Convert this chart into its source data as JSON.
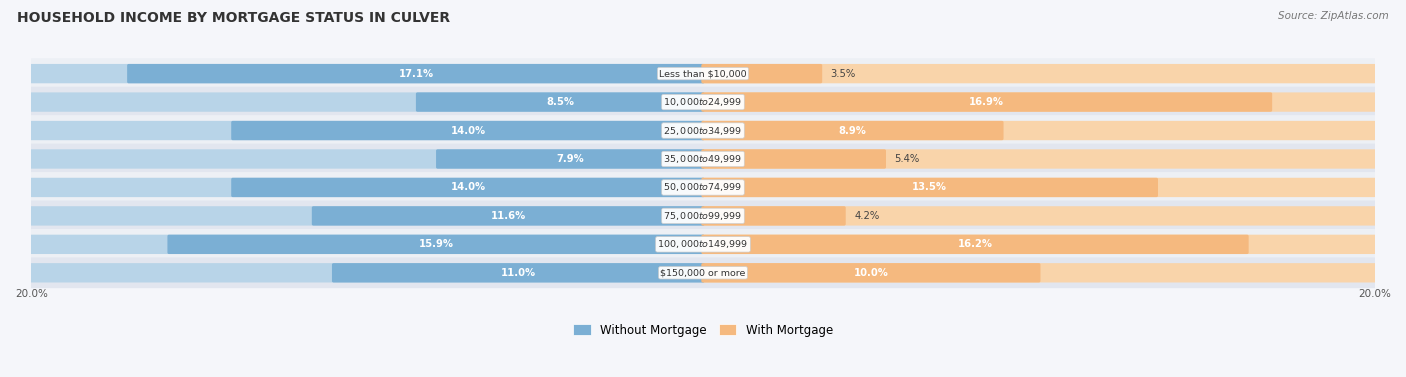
{
  "title": "HOUSEHOLD INCOME BY MORTGAGE STATUS IN CULVER",
  "source": "Source: ZipAtlas.com",
  "categories": [
    "Less than $10,000",
    "$10,000 to $24,999",
    "$25,000 to $34,999",
    "$35,000 to $49,999",
    "$50,000 to $74,999",
    "$75,000 to $99,999",
    "$100,000 to $149,999",
    "$150,000 or more"
  ],
  "without_mortgage": [
    17.1,
    8.5,
    14.0,
    7.9,
    14.0,
    11.6,
    15.9,
    11.0
  ],
  "with_mortgage": [
    3.5,
    16.9,
    8.9,
    5.4,
    13.5,
    4.2,
    16.2,
    10.0
  ],
  "max_val": 20.0,
  "color_without": "#7bafd4",
  "color_with": "#f5b97f",
  "color_without_light": "#b8d4e8",
  "color_with_light": "#f9d4aa",
  "legend_without": "Without Mortgage",
  "legend_with": "With Mortgage",
  "fig_bg": "#f5f6fa"
}
